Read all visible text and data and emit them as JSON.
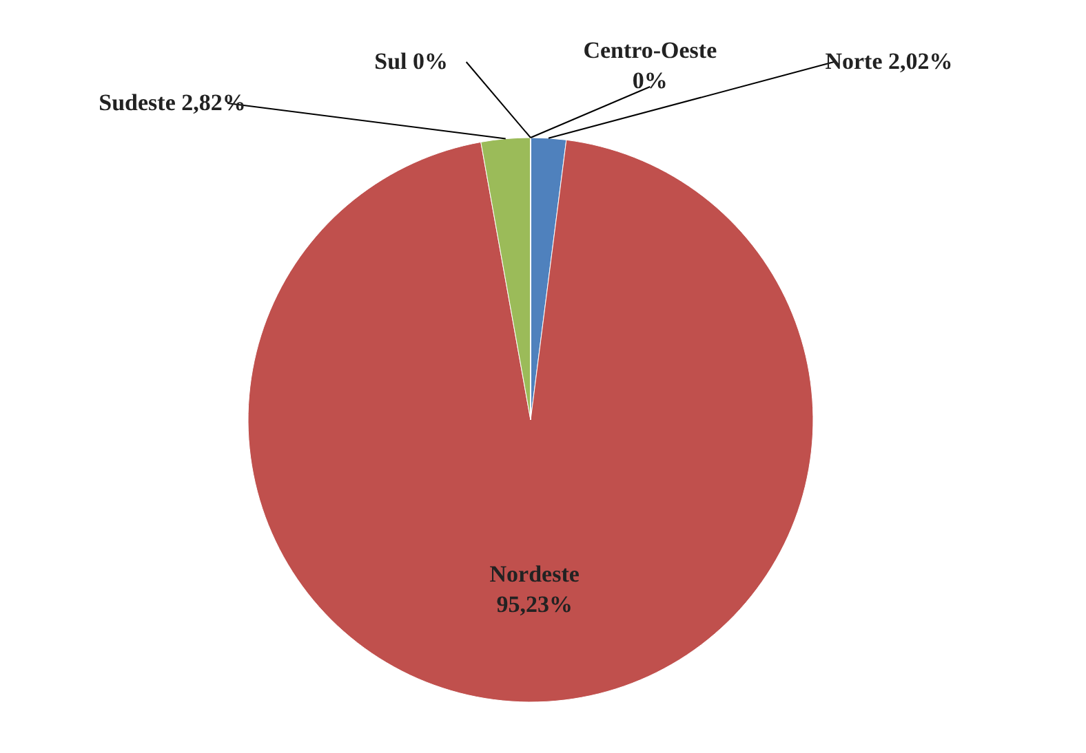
{
  "chart_data": {
    "type": "pie",
    "categories": [
      "Norte",
      "Nordeste",
      "Sudeste",
      "Sul",
      "Centro-Oeste"
    ],
    "values": [
      2.02,
      95.23,
      2.82,
      0,
      0
    ],
    "colors": [
      "#4f81bd",
      "#c0504d",
      "#9bbb59",
      "#8064a2",
      "#4bacc6"
    ],
    "value_labels": [
      "2,02%",
      "95,23%",
      "2,82%",
      "0%",
      "0%"
    ],
    "legend": false
  }
}
